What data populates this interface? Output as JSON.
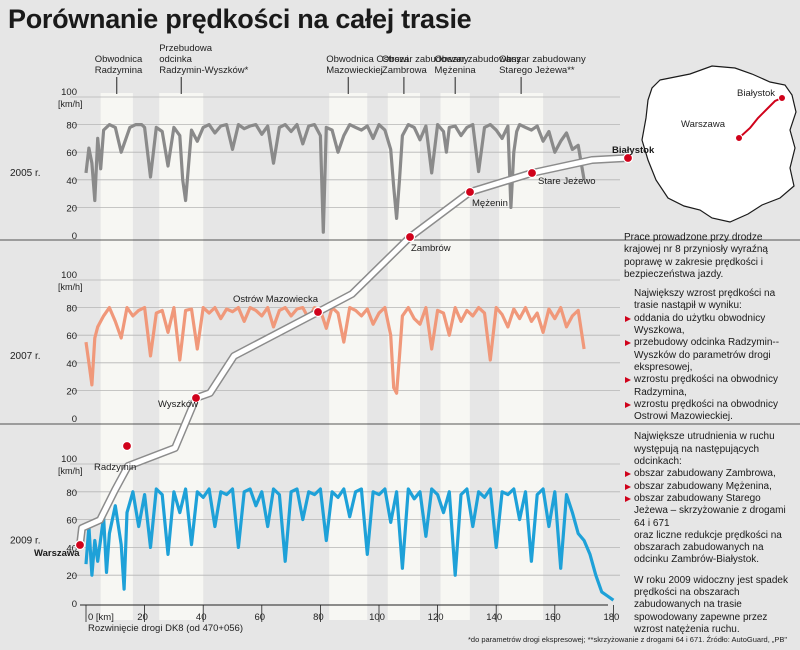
{
  "title": "Porównanie prędkości na całej trasie",
  "colors": {
    "y2005": "#8a8a8a",
    "y2007": "#f0987a",
    "y2009": "#1ea1d8",
    "route": "#d0021b",
    "zone": "#f7f7f3",
    "background": "#e6e6e6"
  },
  "zones": [
    {
      "label": "Obwodnica Radzymina",
      "range_km": [
        5,
        16
      ]
    },
    {
      "label": "Przebudowa odcinka Radzymin-Wyszków*",
      "range_km": [
        25,
        40
      ]
    },
    {
      "label": "Obwodnica Ostrowi Mazowieckiej",
      "range_km": [
        83,
        96
      ]
    },
    {
      "label": "Obszar zabudowany Zambrowa",
      "range_km": [
        103,
        114
      ]
    },
    {
      "label": "Obszar zabudowany Mężenina",
      "range_km": [
        121,
        131
      ]
    },
    {
      "label": "Obszar zabudowany Starego Jeżewa**",
      "range_km": [
        141,
        156
      ]
    }
  ],
  "panels": [
    {
      "year": "2005 r.",
      "unit": "[km/h]",
      "ticks": [
        "0",
        "20",
        "40",
        "60",
        "80",
        "100"
      ]
    },
    {
      "year": "2007 r.",
      "unit": "[km/h]",
      "ticks": [
        "0",
        "20",
        "40",
        "60",
        "80",
        "100"
      ]
    },
    {
      "year": "2009 r.",
      "unit": "[km/h]",
      "ticks": [
        "0",
        "20",
        "40",
        "60",
        "80",
        "100"
      ]
    }
  ],
  "x_axis": {
    "ticks": [
      "0 [km]",
      "20",
      "40",
      "60",
      "80",
      "100",
      "120",
      "140",
      "160",
      "180"
    ],
    "label": "Rozwinięcie drogi DK8 (od 470+056)"
  },
  "route_cities": [
    {
      "name": "Warszawa",
      "bold": true
    },
    {
      "name": "Radzymin",
      "bold": false
    },
    {
      "name": "Wyszków",
      "bold": false
    },
    {
      "name": "Ostrów Mazowiecka",
      "bold": false
    },
    {
      "name": "Zambrów",
      "bold": false
    },
    {
      "name": "Mężenin",
      "bold": false
    },
    {
      "name": "Stare Jeżewo",
      "bold": false
    },
    {
      "name": "Białystok",
      "bold": true
    }
  ],
  "map": {
    "cities": [
      "Białystok",
      "Warszawa"
    ]
  },
  "side_text": {
    "p1": "Prace prowadzone przy drodze krajowej nr 8 przyniosły wyraźną poprawę w zakresie prędkości i bezpieczeństwa jazdy.",
    "p2_intro": "Największy wzrost prędkości na trasie nastąpił w wyniku:",
    "p2_items": [
      "oddania do użytku obwodnicy Wyszkowa,",
      "przebudowy odcinka Radzymin--Wyszków do parametrów drogi ekspresowej,",
      "wzrostu prędkości na obwodnicy Radzymina,",
      "wzrostu prędkości na obwodnicy Ostrowi Mazowieckiej."
    ],
    "p3_intro": "Największe utrudnienia w ruchu występują na następujących odcinkach:",
    "p3_items": [
      "obszar zabudowany Zambrowa,",
      "obszar zabudowany Mężenina,",
      "obszar zabudowany Starego Jeżewa – skrzyżowanie z drogami 64 i 671"
    ],
    "p3_outro": "oraz liczne redukcje prędkości na obszarach zabudowanych na odcinku Zambrów-Białystok.",
    "p4": "W roku 2009 widoczny jest spadek prędkości na obszarach zabudowanych na trasie spowodowany zapewne przez wzrost natężenia ruchu."
  },
  "footnote": "*do parametrów drogi ekspresowej; **skrzyżowanie z drogami 64 i 671. Źródło: AutoGuard, „PB\"",
  "chart_data": [
    {
      "type": "line",
      "title": "2005 r.",
      "xlabel": "Rozwinięcie drogi DK8 (od 470+056)",
      "ylabel": "[km/h]",
      "xlim": [
        -3,
        182
      ],
      "ylim": [
        0,
        100
      ],
      "series": [
        {
          "name": "2005 r.",
          "x": [
            0,
            1,
            2,
            3,
            4,
            5,
            6,
            8,
            10,
            12,
            14,
            15,
            17,
            19,
            20,
            22,
            24,
            26,
            28,
            30,
            32,
            33,
            34,
            36,
            38,
            40,
            42,
            44,
            46,
            48,
            50,
            52,
            54,
            56,
            58,
            60,
            62,
            64,
            66,
            68,
            70,
            72,
            74,
            76,
            78,
            80,
            81,
            82,
            84,
            86,
            88,
            90,
            92,
            94,
            96,
            98,
            100,
            102,
            104,
            105,
            106,
            107,
            108,
            110,
            112,
            114,
            116,
            118,
            120,
            122,
            123,
            124,
            126,
            128,
            130,
            132,
            134,
            136,
            138,
            140,
            142,
            144,
            145,
            146,
            147,
            148,
            150,
            152,
            154,
            156,
            158,
            160,
            162,
            164,
            166,
            168,
            170
          ],
          "y": [
            45,
            63,
            52,
            25,
            70,
            48,
            76,
            80,
            78,
            60,
            72,
            78,
            80,
            80,
            78,
            42,
            78,
            75,
            50,
            78,
            72,
            40,
            25,
            76,
            68,
            78,
            80,
            74,
            79,
            80,
            62,
            80,
            77,
            79,
            80,
            73,
            79,
            52,
            78,
            80,
            75,
            80,
            66,
            79,
            80,
            72,
            2,
            78,
            76,
            60,
            72,
            80,
            78,
            76,
            79,
            70,
            80,
            76,
            62,
            35,
            12,
            40,
            72,
            80,
            78,
            69,
            79,
            45,
            80,
            75,
            60,
            78,
            79,
            72,
            78,
            80,
            46,
            78,
            80,
            76,
            70,
            79,
            20,
            60,
            75,
            80,
            78,
            76,
            79,
            68,
            75,
            60,
            68,
            74,
            62,
            65,
            40
          ]
        }
      ]
    },
    {
      "type": "line",
      "title": "2007 r.",
      "xlabel": "Rozwinięcie drogi DK8 (od 470+056)",
      "ylabel": "[km/h]",
      "xlim": [
        -3,
        182
      ],
      "ylim": [
        0,
        100
      ],
      "series": [
        {
          "name": "2007 r.",
          "x": [
            0,
            1,
            2,
            3,
            4,
            6,
            8,
            10,
            12,
            14,
            16,
            18,
            20,
            22,
            24,
            26,
            28,
            30,
            32,
            34,
            36,
            38,
            40,
            42,
            44,
            46,
            48,
            50,
            52,
            54,
            56,
            58,
            60,
            62,
            64,
            66,
            68,
            70,
            72,
            74,
            76,
            78,
            80,
            82,
            84,
            86,
            88,
            90,
            92,
            94,
            96,
            98,
            100,
            102,
            104,
            105,
            106,
            107,
            108,
            110,
            112,
            114,
            116,
            118,
            120,
            122,
            124,
            126,
            128,
            130,
            132,
            134,
            136,
            138,
            140,
            142,
            144,
            146,
            148,
            150,
            152,
            154,
            156,
            158,
            160,
            162,
            164,
            166,
            168,
            170
          ],
          "y": [
            55,
            40,
            24,
            58,
            66,
            74,
            80,
            70,
            58,
            80,
            74,
            78,
            80,
            45,
            76,
            78,
            62,
            80,
            42,
            78,
            79,
            50,
            80,
            76,
            80,
            72,
            79,
            77,
            80,
            70,
            80,
            78,
            74,
            80,
            66,
            78,
            80,
            74,
            79,
            80,
            72,
            80,
            78,
            65,
            80,
            76,
            55,
            80,
            78,
            74,
            79,
            68,
            76,
            80,
            60,
            22,
            18,
            45,
            74,
            80,
            72,
            68,
            80,
            50,
            78,
            76,
            60,
            80,
            70,
            78,
            74,
            80,
            76,
            42,
            80,
            75,
            66,
            79,
            72,
            80,
            70,
            76,
            62,
            79,
            72,
            80,
            66,
            74,
            78,
            50
          ]
        }
      ]
    },
    {
      "type": "line",
      "title": "2009 r.",
      "xlabel": "Rozwinięcie drogi DK8 (od 470+056)",
      "ylabel": "[km/h]",
      "xlim": [
        -3,
        182
      ],
      "ylim": [
        0,
        100
      ],
      "series": [
        {
          "name": "2009 r.",
          "x": [
            0,
            1,
            2,
            3,
            4,
            6,
            7,
            8,
            10,
            12,
            13,
            14,
            16,
            18,
            20,
            22,
            24,
            26,
            28,
            30,
            32,
            34,
            36,
            38,
            40,
            42,
            44,
            46,
            48,
            50,
            52,
            54,
            56,
            58,
            60,
            62,
            64,
            66,
            68,
            70,
            72,
            74,
            76,
            78,
            80,
            82,
            84,
            86,
            88,
            90,
            92,
            94,
            96,
            98,
            100,
            102,
            104,
            106,
            108,
            110,
            112,
            114,
            116,
            118,
            120,
            122,
            124,
            126,
            128,
            130,
            132,
            134,
            136,
            138,
            140,
            142,
            144,
            146,
            148,
            150,
            152,
            154,
            156,
            158,
            160,
            162,
            164,
            166,
            168,
            170,
            172,
            174,
            176,
            178,
            180
          ],
          "y": [
            28,
            55,
            20,
            45,
            30,
            62,
            22,
            50,
            70,
            42,
            10,
            65,
            80,
            55,
            78,
            40,
            82,
            78,
            35,
            80,
            65,
            82,
            42,
            80,
            76,
            82,
            55,
            80,
            78,
            82,
            40,
            80,
            82,
            70,
            80,
            55,
            82,
            78,
            30,
            80,
            82,
            60,
            80,
            78,
            82,
            45,
            80,
            76,
            82,
            62,
            80,
            82,
            35,
            80,
            78,
            82,
            58,
            80,
            25,
            82,
            75,
            80,
            48,
            82,
            78,
            65,
            80,
            20,
            78,
            82,
            55,
            80,
            76,
            82,
            40,
            80,
            78,
            82,
            60,
            80,
            30,
            78,
            82,
            55,
            80,
            25,
            78,
            65,
            50,
            45,
            35,
            20,
            8,
            5,
            2
          ]
        }
      ]
    }
  ]
}
